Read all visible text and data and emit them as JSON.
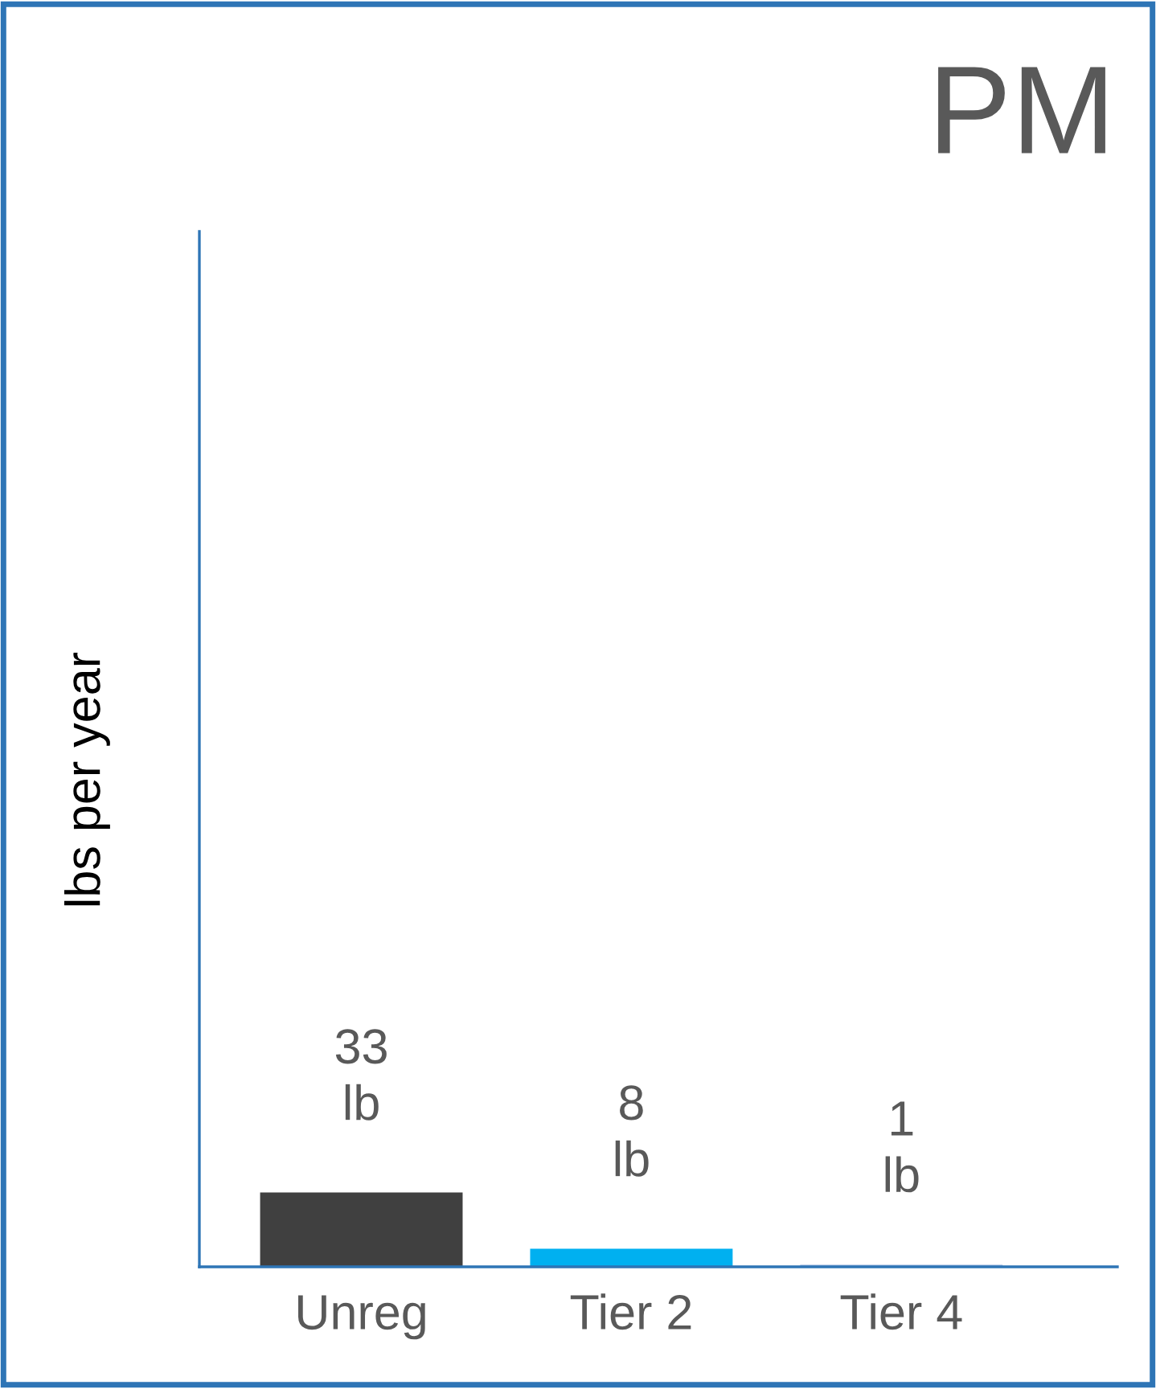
{
  "chart_data": {
    "type": "bar",
    "title": "PM",
    "ylabel": "lbs per year",
    "categories": [
      "Unreg",
      "Tier 2",
      "Tier 4"
    ],
    "values": [
      33,
      8,
      1
    ],
    "colors": [
      "#404040",
      "#00b0f0",
      "#b4c7e7"
    ],
    "value_labels": [
      "33\nlb",
      "8\nlb",
      "1\nlb"
    ],
    "ylim": [
      0,
      460
    ],
    "grid": false,
    "legend": false
  }
}
